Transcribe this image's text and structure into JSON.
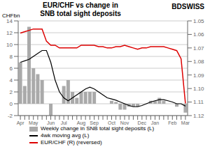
{
  "chart_data": {
    "type": "bar",
    "title": "EUR/CHF vs change in\nSNB total sight deposits",
    "annotations": [
      "CHFbn",
      "BDSWISS"
    ],
    "categories": [
      "Apr",
      null,
      null,
      "May",
      null,
      null,
      null,
      "Jun",
      null,
      null,
      "Jul",
      null,
      null,
      null,
      "Aug",
      null,
      null,
      "Sep",
      null,
      null,
      null,
      "Oct",
      null,
      null,
      "Nov",
      null,
      null,
      null,
      "Dec",
      null,
      null,
      "Jan",
      null,
      null,
      null,
      "Feb",
      null,
      null,
      "Mar"
    ],
    "series": [
      {
        "name": "Weekly change in SNB total sight deposits (L)",
        "type": "bar",
        "color": "#aaaaaa",
        "values": [
          7,
          3,
          13,
          6,
          5,
          4,
          0,
          -2,
          0,
          0,
          3,
          4,
          2,
          1,
          2,
          2,
          2,
          2,
          0,
          0,
          0,
          0.5,
          0.3,
          -1,
          -1,
          -0.5,
          -0.5,
          -0.5,
          0,
          0,
          0.5,
          0.5,
          1,
          0.5,
          0,
          0,
          -0.5,
          0,
          -1.5
        ]
      },
      {
        "name": "4wk moving avg (L)",
        "type": "line",
        "color": "#000000",
        "values": [
          7,
          7.25,
          7.5,
          8,
          8.5,
          9,
          9,
          7,
          4,
          2,
          1,
          0.5,
          1,
          1.5,
          2,
          2.5,
          2.8,
          2.5,
          2,
          1.5,
          1,
          0.8,
          0.6,
          0.3,
          0,
          -0.3,
          -0.5,
          -0.5,
          -0.3,
          0,
          0.3,
          0.5,
          0.7,
          0.7,
          0.5,
          0.3,
          0,
          0,
          -0.4
        ]
      },
      {
        "name": "EUR/CHF (R) (reversed)",
        "type": "line",
        "color": "#dd0000",
        "axis": "y2",
        "values": [
          1.059,
          1.058,
          1.057,
          1.056,
          1.056,
          1.056,
          1.065,
          1.068,
          1.068,
          1.07,
          1.07,
          1.07,
          1.07,
          1.07,
          1.068,
          1.068,
          1.068,
          1.068,
          1.069,
          1.069,
          1.07,
          1.07,
          1.069,
          1.069,
          1.068,
          1.069,
          1.07,
          1.071,
          1.07,
          1.07,
          1.069,
          1.069,
          1.069,
          1.069,
          1.07,
          1.071,
          1.072,
          1.078,
          1.111
        ]
      }
    ],
    "ylim": [
      -2,
      14
    ],
    "yticks": [
      -2,
      0,
      2,
      4,
      6,
      8,
      10,
      12,
      14
    ],
    "y2lim": [
      1.12,
      1.05
    ],
    "y2ticks": [
      1.05,
      1.06,
      1.07,
      1.08,
      1.09,
      {
        "value": 1.1,
        "label": "1.10"
      },
      1.11,
      1.12
    ],
    "grid": true,
    "legend": "bottom"
  }
}
